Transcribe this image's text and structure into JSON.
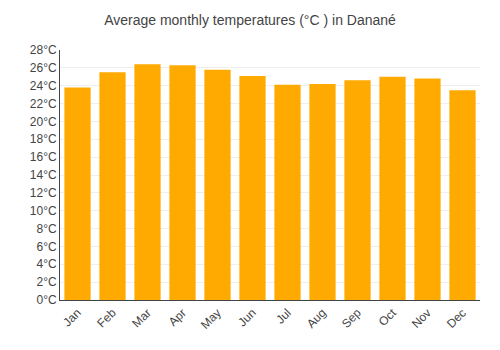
{
  "chart_data": {
    "type": "bar",
    "title": "Average monthly temperatures (°C ) in Danané",
    "categories": [
      "Jan",
      "Feb",
      "Mar",
      "Apr",
      "May",
      "Jun",
      "Jul",
      "Aug",
      "Sep",
      "Oct",
      "Nov",
      "Dec"
    ],
    "values": [
      23.8,
      25.5,
      26.4,
      26.3,
      25.8,
      25.1,
      24.1,
      24.2,
      24.6,
      25.0,
      24.8,
      23.5
    ],
    "color": "#FFAA00",
    "ylim": [
      0,
      28
    ],
    "yticks": [
      {
        "value": 0,
        "label": "0°C"
      },
      {
        "value": 2,
        "label": "2°C"
      },
      {
        "value": 4,
        "label": "4°C"
      },
      {
        "value": 6,
        "label": "6°C"
      },
      {
        "value": 8,
        "label": "8°C"
      },
      {
        "value": 10,
        "label": "10°C"
      },
      {
        "value": 12,
        "label": "12°C"
      },
      {
        "value": 14,
        "label": "14°C"
      },
      {
        "value": 16,
        "label": "16°C"
      },
      {
        "value": 18,
        "label": "18°C"
      },
      {
        "value": 20,
        "label": "20°C"
      },
      {
        "value": 22,
        "label": "22°C"
      },
      {
        "value": 24,
        "label": "24°C"
      },
      {
        "value": 26,
        "label": "26°C"
      },
      {
        "value": 28,
        "label": "28°C"
      }
    ],
    "grid": true
  }
}
